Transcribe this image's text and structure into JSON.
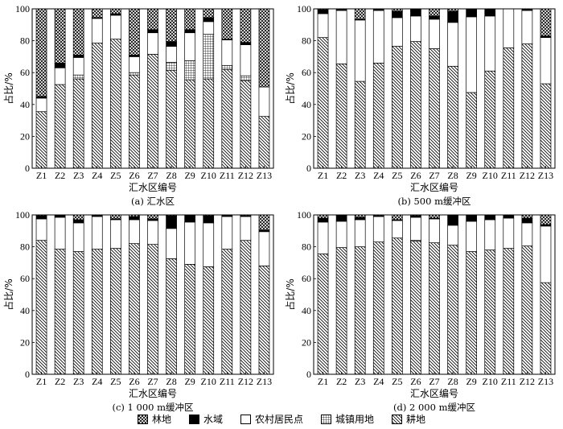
{
  "chart_data": [
    {
      "type": "bar",
      "stacked": true,
      "title": "(a) 汇水区",
      "xlabel": "汇水区编号",
      "ylabel": "占比/%",
      "ylim": [
        0,
        100
      ],
      "yticks": [
        "0",
        "20",
        "40",
        "60",
        "80",
        "100"
      ],
      "categories": [
        "Z1",
        "Z2",
        "Z3",
        "Z4",
        "Z5",
        "Z6",
        "Z7",
        "Z8",
        "Z9",
        "Z10",
        "Z11",
        "Z12",
        "Z13"
      ],
      "series": [
        {
          "name": "耕地",
          "values": [
            35.5,
            52.5,
            56,
            78.5,
            81,
            58.5,
            71.5,
            61.5,
            55.5,
            56,
            62,
            55,
            32.5
          ]
        },
        {
          "name": "城镇用地",
          "values": [
            0,
            0,
            2.5,
            0,
            0,
            1.5,
            0,
            5,
            12,
            28,
            2.5,
            3,
            0
          ]
        },
        {
          "name": "农村居民点",
          "values": [
            8.5,
            10.5,
            11,
            15.5,
            15,
            10,
            13.5,
            10,
            17.5,
            8,
            16,
            19.5,
            18.5
          ]
        },
        {
          "name": "水域",
          "values": [
            1,
            3,
            1.5,
            0.5,
            1,
            1,
            2,
            3,
            2,
            2.5,
            0.5,
            1.5,
            0
          ]
        },
        {
          "name": "林地",
          "values": [
            55,
            34,
            29,
            5.5,
            3,
            29,
            13,
            20.5,
            13,
            5.5,
            19,
            21,
            49
          ]
        }
      ]
    },
    {
      "type": "bar",
      "stacked": true,
      "title": "(b) 500 m缓冲区",
      "xlabel": "汇水区编号",
      "ylabel": "占比/%",
      "ylim": [
        0,
        100
      ],
      "yticks": [
        "0",
        "20",
        "40",
        "60",
        "80",
        "100"
      ],
      "categories": [
        "Z1",
        "Z2",
        "Z3",
        "Z4",
        "Z5",
        "Z6",
        "Z7",
        "Z8",
        "Z9",
        "Z10",
        "Z11",
        "Z12",
        "Z13"
      ],
      "series": [
        {
          "name": "耕地",
          "values": [
            82,
            65.5,
            54.5,
            66,
            76.5,
            79.5,
            75,
            64,
            47.5,
            61,
            75.5,
            78,
            53
          ]
        },
        {
          "name": "城镇用地",
          "values": [
            0,
            0,
            0,
            0,
            0,
            0,
            0,
            0,
            0,
            0,
            0,
            0,
            0
          ]
        },
        {
          "name": "农村居民点",
          "values": [
            15,
            33.5,
            38.5,
            33,
            18,
            16,
            18.5,
            27.5,
            47.5,
            34.5,
            24.5,
            21,
            29
          ]
        },
        {
          "name": "水域",
          "values": [
            2.5,
            1,
            0.5,
            1,
            4,
            4.5,
            2,
            7,
            5,
            4.5,
            0,
            1,
            1
          ]
        },
        {
          "name": "林地",
          "values": [
            0.5,
            0,
            6.5,
            0,
            1.5,
            0,
            4.5,
            1.5,
            0,
            0,
            0,
            0,
            17
          ]
        }
      ]
    },
    {
      "type": "bar",
      "stacked": true,
      "title": "(c) 1 000 m缓冲区",
      "xlabel": "汇水区编号",
      "ylabel": "占比/%",
      "ylim": [
        0,
        100
      ],
      "yticks": [
        "0",
        "20",
        "40",
        "60",
        "80",
        "100"
      ],
      "categories": [
        "Z1",
        "Z2",
        "Z3",
        "Z4",
        "Z5",
        "Z6",
        "Z7",
        "Z8",
        "Z9",
        "Z10",
        "Z11",
        "Z12",
        "Z13"
      ],
      "series": [
        {
          "name": "耕地",
          "values": [
            84,
            78.5,
            77,
            78.5,
            79,
            82,
            81.5,
            72.5,
            69,
            67.5,
            78.5,
            84,
            68
          ]
        },
        {
          "name": "城镇用地",
          "values": [
            0,
            0,
            0,
            0,
            0,
            0,
            0,
            0,
            0,
            0,
            0,
            0,
            0
          ]
        },
        {
          "name": "农村居民点",
          "values": [
            13.5,
            20,
            18,
            20.5,
            18,
            15,
            15,
            19,
            26.5,
            27.5,
            20.5,
            15,
            21.5
          ]
        },
        {
          "name": "水域",
          "values": [
            2,
            1.5,
            2,
            1,
            0.5,
            2,
            1,
            8,
            4.5,
            4.5,
            1,
            0.5,
            1
          ]
        },
        {
          "name": "林地",
          "values": [
            0.5,
            0,
            3,
            0,
            2.5,
            1,
            2.5,
            0.5,
            0,
            0.5,
            0,
            0.5,
            9.5
          ]
        }
      ]
    },
    {
      "type": "bar",
      "stacked": true,
      "title": "(d) 2 000 m缓冲区",
      "xlabel": "汇水区编号",
      "ylabel": "占比/%",
      "ylim": [
        0,
        100
      ],
      "yticks": [
        "0",
        "20",
        "40",
        "60",
        "80",
        "100"
      ],
      "categories": [
        "Z1",
        "Z2",
        "Z3",
        "Z4",
        "Z5",
        "Z6",
        "Z7",
        "Z8",
        "Z9",
        "Z10",
        "Z11",
        "Z12",
        "Z13"
      ],
      "series": [
        {
          "name": "耕地",
          "values": [
            75.5,
            79.5,
            80,
            83,
            85.5,
            83.5,
            82.5,
            81,
            77,
            78,
            79,
            80.5,
            57.5
          ]
        },
        {
          "name": "城镇用地",
          "values": [
            0,
            0,
            0,
            0,
            0,
            0.5,
            0,
            0,
            0,
            0,
            0,
            0,
            0
          ]
        },
        {
          "name": "农村居民点",
          "values": [
            20,
            16.5,
            17,
            16,
            11,
            14.5,
            15,
            12.5,
            19,
            19,
            19,
            14.5,
            35.5
          ]
        },
        {
          "name": "水域",
          "values": [
            2.5,
            4,
            1.5,
            0.5,
            0.5,
            1,
            0.5,
            6.5,
            4,
            3,
            2,
            3,
            1
          ]
        },
        {
          "name": "林地",
          "values": [
            2,
            0,
            1.5,
            0.5,
            3,
            0.5,
            2,
            0,
            0,
            0,
            0,
            2,
            6
          ]
        }
      ]
    }
  ],
  "legend": [
    "林地",
    "水域",
    "农村居民点",
    "城镇用地",
    "耕地"
  ],
  "legend_order_keys": [
    "林地",
    "水域",
    "农村居民点",
    "城镇用地",
    "耕地"
  ]
}
